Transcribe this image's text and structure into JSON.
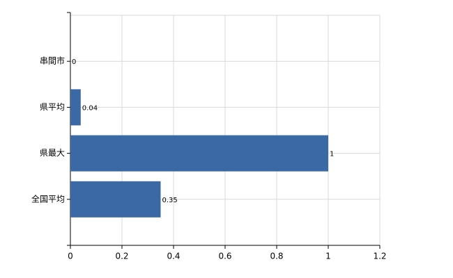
{
  "chart_data": {
    "type": "bar",
    "orientation": "horizontal",
    "categories": [
      "串間市",
      "県平均",
      "県最大",
      "全国平均"
    ],
    "values": [
      0,
      0.04,
      1,
      0.35
    ],
    "color": "#3a69a6",
    "xlim": [
      0,
      1.2
    ],
    "xticks": [
      0,
      0.2,
      0.4,
      0.6,
      0.8,
      1,
      1.2
    ],
    "grid": true
  }
}
